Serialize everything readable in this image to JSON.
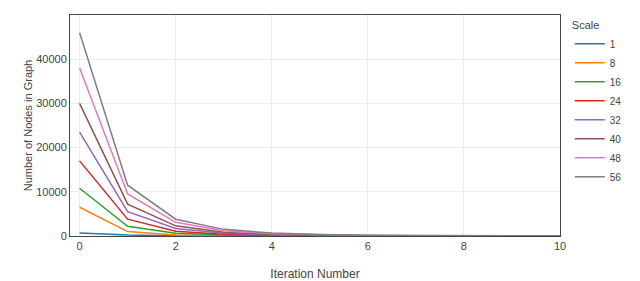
{
  "chart_data": {
    "type": "line",
    "xlabel": "Iteration Number",
    "ylabel": "Number of Nodes in Graph",
    "x": [
      0,
      1,
      2,
      3,
      4,
      5,
      6,
      7,
      8,
      9,
      10
    ],
    "xlim": [
      -0.2,
      10
    ],
    "xticks": [
      0,
      2,
      4,
      6,
      8,
      10
    ],
    "ylim": [
      0,
      50000
    ],
    "yticks": [
      0,
      10000,
      20000,
      30000,
      40000
    ],
    "legend_title": "Scale",
    "legend": "upper right",
    "grid": true,
    "series": [
      {
        "name": "1",
        "color": "#1f77b4",
        "values": [
          700,
          200,
          50,
          20,
          10,
          5,
          3,
          2,
          1,
          1,
          1
        ]
      },
      {
        "name": "8",
        "color": "#ff7f0e",
        "values": [
          6500,
          1000,
          250,
          80,
          30,
          15,
          8,
          5,
          3,
          2,
          2
        ]
      },
      {
        "name": "16",
        "color": "#2ca02c",
        "values": [
          10800,
          2200,
          600,
          200,
          80,
          35,
          18,
          10,
          6,
          4,
          3
        ]
      },
      {
        "name": "24",
        "color": "#d62728",
        "values": [
          17000,
          3800,
          1100,
          380,
          150,
          70,
          35,
          20,
          12,
          8,
          6
        ]
      },
      {
        "name": "32",
        "color": "#9467bd",
        "values": [
          23500,
          5500,
          1700,
          600,
          240,
          110,
          58,
          32,
          20,
          13,
          10
        ]
      },
      {
        "name": "40",
        "color": "#8c564b",
        "values": [
          30000,
          7200,
          2300,
          850,
          360,
          170,
          90,
          52,
          33,
          22,
          16
        ]
      },
      {
        "name": "48",
        "color": "#e377c2",
        "values": [
          38000,
          9500,
          3100,
          1200,
          520,
          250,
          135,
          78,
          50,
          33,
          24
        ]
      },
      {
        "name": "56",
        "color": "#7f7f7f",
        "values": [
          46000,
          11500,
          3800,
          1500,
          670,
          330,
          180,
          106,
          67,
          45,
          32
        ]
      }
    ]
  }
}
